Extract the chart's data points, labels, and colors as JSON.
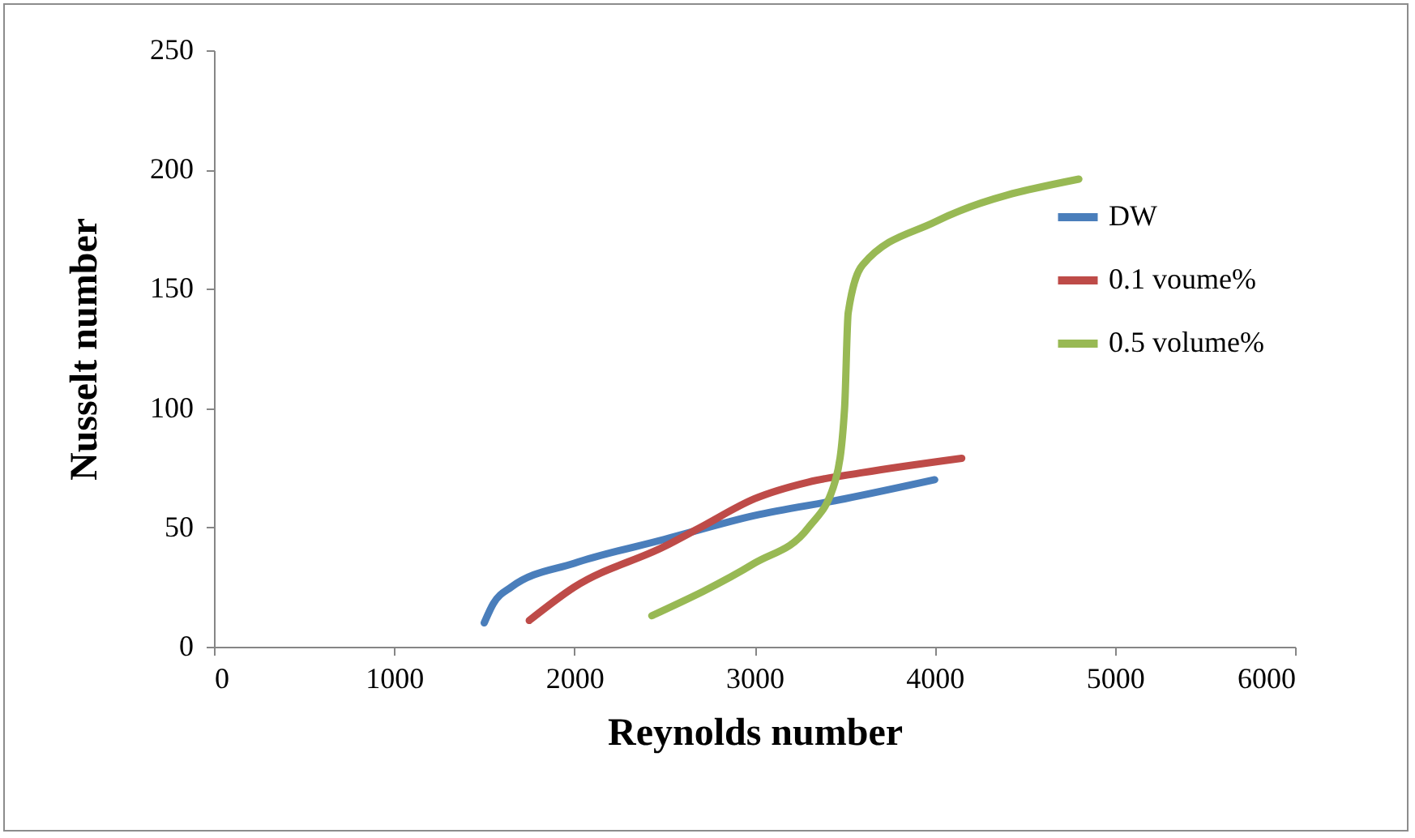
{
  "chart_data": {
    "type": "line",
    "xlabel": "Reynolds number",
    "ylabel": "Nusselt number",
    "xlim": [
      0,
      6000
    ],
    "xticks": [
      0,
      1000,
      2000,
      3000,
      4000,
      5000,
      6000
    ],
    "ylim": [
      0,
      250
    ],
    "yticks": [
      0,
      50,
      100,
      150,
      200,
      250
    ],
    "grid": false,
    "legend": "right",
    "marker": "none",
    "line_style": "solid",
    "series": [
      {
        "name": "DW",
        "color": "#4a7ebb",
        "x": [
          1500,
          1550,
          1650,
          2000,
          2500,
          3000,
          3500,
          4000
        ],
        "values": [
          10,
          18,
          25,
          35,
          45,
          55,
          62,
          70
        ]
      },
      {
        "name": "0.1 voume%",
        "color": "#be4b48",
        "x": [
          1750,
          2000,
          2500,
          2700,
          3000,
          3300,
          3600,
          4150
        ],
        "values": [
          11,
          25,
          42,
          50,
          62,
          69,
          73,
          79
        ]
      },
      {
        "name": "0.5 volume%",
        "color": "#98b954",
        "x": [
          2430,
          3000,
          3300,
          3450,
          3500,
          3520,
          3600,
          4000,
          4800
        ],
        "values": [
          13,
          35,
          50,
          70,
          100,
          140,
          160,
          178,
          196
        ]
      }
    ]
  }
}
